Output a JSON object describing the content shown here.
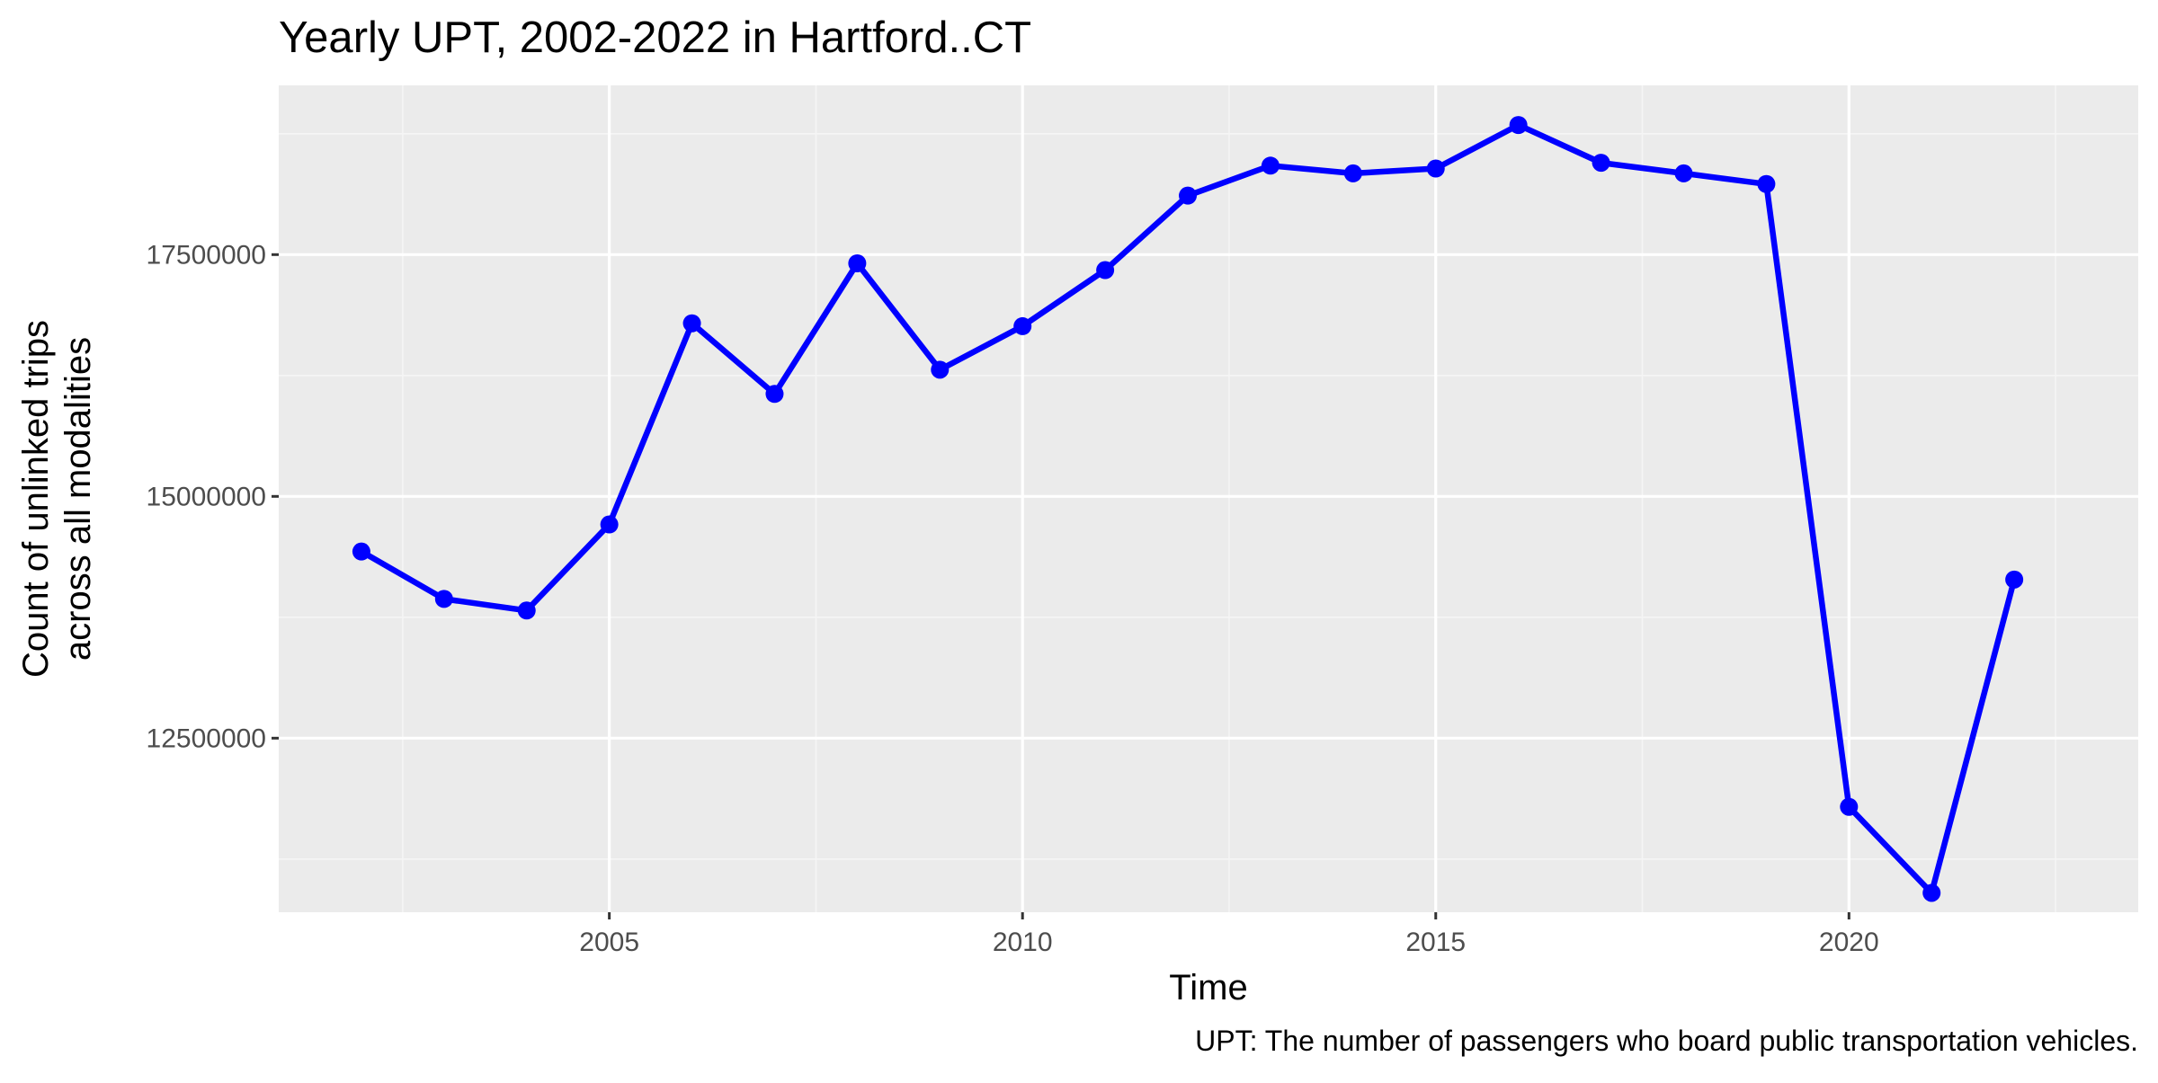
{
  "chart_data": {
    "type": "line",
    "title": "Yearly UPT, 2002-2022 in Hartford..CT",
    "xlabel": "Time",
    "ylabel_lines": [
      "Count of unlinked trips",
      "across all modalities"
    ],
    "caption": "UPT: The number of passengers who board public transportation vehicles.",
    "xlim": [
      2001.0,
      2023.5
    ],
    "ylim": [
      10700000,
      19250000
    ],
    "x_ticks": [
      2005,
      2010,
      2015,
      2020
    ],
    "x_tick_labels": [
      "2005",
      "2010",
      "2015",
      "2020"
    ],
    "x_minor_ticks": [
      2002.5,
      2007.5,
      2012.5,
      2017.5,
      2022.5
    ],
    "y_ticks": [
      12500000,
      15000000,
      17500000
    ],
    "y_tick_labels": [
      "12500000",
      "15000000",
      "17500000"
    ],
    "y_minor_ticks": [
      11250000,
      13750000,
      16250000,
      18750000
    ],
    "grid": true,
    "x": [
      2002,
      2003,
      2004,
      2005,
      2006,
      2007,
      2008,
      2009,
      2010,
      2011,
      2012,
      2013,
      2014,
      2015,
      2016,
      2017,
      2018,
      2019,
      2020,
      2021,
      2022
    ],
    "series": [
      {
        "values": [
          14430000,
          13940000,
          13820000,
          14710000,
          16790000,
          16060000,
          17410000,
          16310000,
          16760000,
          17340000,
          18110000,
          18420000,
          18340000,
          18390000,
          18840000,
          18450000,
          18340000,
          18230000,
          11790000,
          10900000,
          14140000
        ],
        "color": "#0000ff"
      }
    ],
    "colors": {
      "panel_background": "#ebebeb",
      "grid_major": "#ffffff",
      "grid_minor": "#f5f5f5",
      "tick_mark": "#333333"
    }
  }
}
